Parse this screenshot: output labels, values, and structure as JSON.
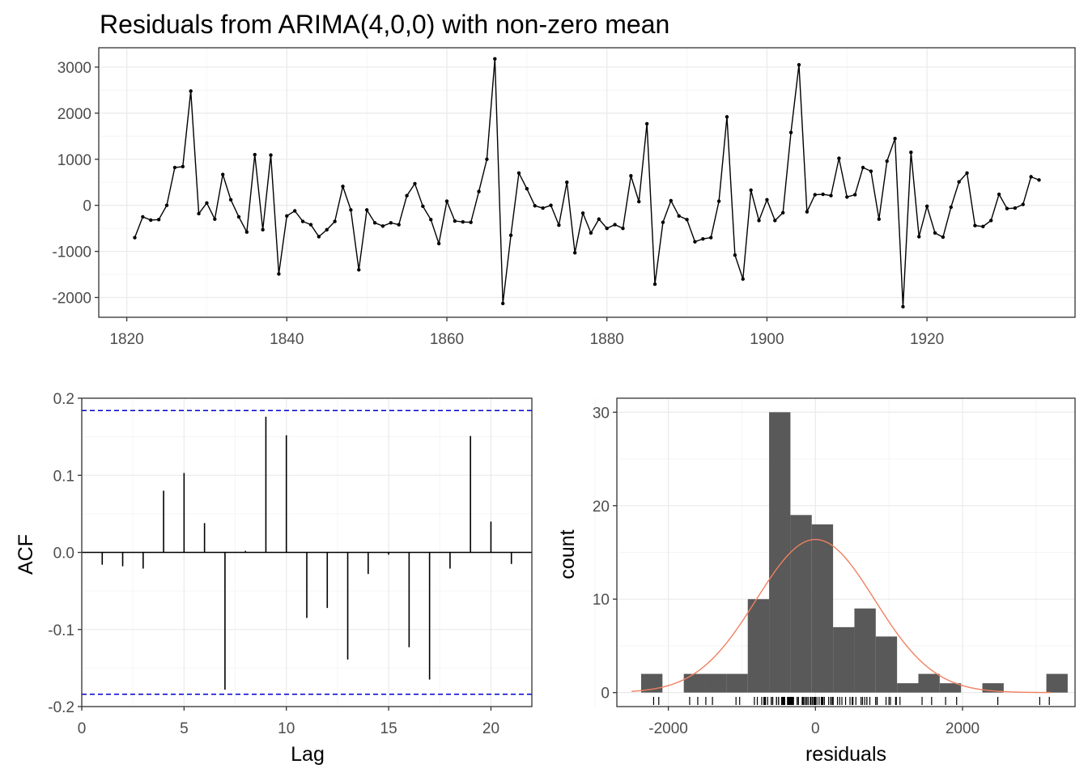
{
  "title": "Residuals from ARIMA(4,0,0) with non-zero mean",
  "colors": {
    "line": "#000000",
    "panel_border": "#333333",
    "grid_major": "#ebebeb",
    "grid_minor": "#f5f5f5",
    "ci_line": "#0000cc",
    "hist_fill": "#595959",
    "density": "#f08060"
  },
  "chart_data": [
    {
      "type": "line",
      "name": "residual-timeseries",
      "x_start": 1821,
      "x": [
        1821,
        1822,
        1823,
        1824,
        1825,
        1826,
        1827,
        1828,
        1829,
        1830,
        1831,
        1832,
        1833,
        1834,
        1835,
        1836,
        1837,
        1838,
        1839,
        1840,
        1841,
        1842,
        1843,
        1844,
        1845,
        1846,
        1847,
        1848,
        1849,
        1850,
        1851,
        1852,
        1853,
        1854,
        1855,
        1856,
        1857,
        1858,
        1859,
        1860,
        1861,
        1862,
        1863,
        1864,
        1865,
        1866,
        1867,
        1868,
        1869,
        1870,
        1871,
        1872,
        1873,
        1874,
        1875,
        1876,
        1877,
        1878,
        1879,
        1880,
        1881,
        1882,
        1883,
        1884,
        1885,
        1886,
        1887,
        1888,
        1889,
        1890,
        1891,
        1892,
        1893,
        1894,
        1895,
        1896,
        1897,
        1898,
        1899,
        1900,
        1901,
        1902,
        1903,
        1904,
        1905,
        1906,
        1907,
        1908,
        1909,
        1910,
        1911,
        1912,
        1913,
        1914,
        1915,
        1916,
        1917,
        1918,
        1919,
        1920,
        1921,
        1922,
        1923,
        1924,
        1925,
        1926,
        1927,
        1928,
        1929,
        1930,
        1931,
        1932,
        1933,
        1934
      ],
      "values": [
        -700,
        -250,
        -320,
        -310,
        0,
        820,
        840,
        2480,
        -180,
        50,
        -300,
        670,
        120,
        -250,
        -580,
        1100,
        -530,
        1090,
        -1490,
        -230,
        -120,
        -350,
        -420,
        -680,
        -530,
        -350,
        410,
        -100,
        -1400,
        -100,
        -380,
        -450,
        -380,
        -420,
        210,
        470,
        -20,
        -310,
        -830,
        90,
        -340,
        -360,
        -370,
        300,
        1000,
        3180,
        -2130,
        -650,
        700,
        360,
        -10,
        -60,
        0,
        -430,
        500,
        -1030,
        -170,
        -600,
        -300,
        -500,
        -420,
        -500,
        640,
        80,
        1770,
        -1710,
        -370,
        100,
        -230,
        -310,
        -790,
        -730,
        -700,
        90,
        1920,
        -1080,
        -1600,
        330,
        -330,
        120,
        -330,
        -160,
        1580,
        3050,
        -140,
        230,
        240,
        210,
        1020,
        180,
        230,
        820,
        740,
        -300,
        960,
        1450,
        -2200,
        1150,
        -680,
        -20,
        -600,
        -690,
        -40,
        510,
        700,
        -440,
        -460,
        -330,
        240,
        -70,
        -60,
        20,
        620,
        550
      ],
      "xlim": [
        1816.5,
        1938.5
      ],
      "ylim": [
        -2430,
        3420
      ],
      "x_ticks": [
        1820,
        1840,
        1860,
        1880,
        1900,
        1920
      ],
      "y_ticks": [
        -2000,
        -1000,
        0,
        1000,
        2000,
        3000
      ],
      "y_tick_labels": [
        "-2000",
        "-1000",
        "0",
        "1000",
        "2000",
        "3000"
      ],
      "grid": true
    },
    {
      "type": "bar",
      "name": "acf",
      "xlabel": "Lag",
      "ylabel": "ACF",
      "categories": [
        1,
        2,
        3,
        4,
        5,
        6,
        7,
        8,
        9,
        10,
        11,
        12,
        13,
        14,
        15,
        16,
        17,
        18,
        19,
        20,
        21
      ],
      "values": [
        -0.016,
        -0.018,
        -0.021,
        0.08,
        0.103,
        0.038,
        -0.178,
        0.002,
        0.176,
        0.152,
        -0.085,
        -0.072,
        -0.139,
        -0.028,
        -0.003,
        -0.123,
        -0.165,
        -0.021,
        0.151,
        0.04,
        -0.015
      ],
      "ci": 0.184,
      "xlim": [
        0,
        22
      ],
      "ylim": [
        -0.2,
        0.2
      ],
      "x_ticks": [
        0,
        5,
        10,
        15,
        20
      ],
      "x_tick_labels": [
        "0",
        "5",
        "10",
        "15",
        "20"
      ],
      "y_ticks": [
        -0.2,
        -0.1,
        0.0,
        0.1,
        0.2
      ],
      "y_tick_labels": [
        "-0.2",
        "-0.1",
        "0.0",
        "0.1",
        "0.2"
      ],
      "grid": true
    },
    {
      "type": "bar",
      "name": "residual-histogram",
      "xlabel": "residuals",
      "ylabel": "count",
      "bin_width": 290,
      "bin_starts": [
        -2370,
        -2080,
        -1790,
        -1500,
        -1210,
        -920,
        -630,
        -340,
        -50,
        240,
        530,
        820,
        1110,
        1400,
        1690,
        1980,
        2270,
        2560,
        2850,
        3140
      ],
      "values": [
        2,
        0,
        2,
        2,
        2,
        10,
        30,
        19,
        18,
        7,
        9,
        6,
        1,
        2,
        1,
        0,
        1,
        0,
        0,
        2
      ],
      "density": {
        "mean": 0,
        "sd": 805,
        "n": 114
      },
      "rug": [
        -2200,
        -2130,
        -1710,
        -1600,
        -1490,
        -1400,
        -1080,
        -1030,
        -830,
        -790,
        -730,
        -700,
        -700,
        -690,
        -680,
        -680,
        -650,
        -600,
        -600,
        -580,
        -530,
        -530,
        -500,
        -500,
        -460,
        -450,
        -440,
        -430,
        -420,
        -420,
        -420,
        -380,
        -370,
        -370,
        -360,
        -350,
        -350,
        -340,
        -330,
        -330,
        -330,
        -320,
        -310,
        -310,
        -310,
        -300,
        -300,
        -300,
        -250,
        -250,
        -230,
        -230,
        -180,
        -170,
        -160,
        -140,
        -120,
        -100,
        -100,
        -70,
        -60,
        -60,
        -40,
        -20,
        -20,
        -10,
        0,
        0,
        20,
        50,
        80,
        90,
        90,
        100,
        120,
        120,
        180,
        210,
        210,
        230,
        230,
        240,
        240,
        300,
        330,
        360,
        410,
        470,
        500,
        510,
        550,
        620,
        640,
        670,
        700,
        700,
        740,
        820,
        820,
        840,
        960,
        1000,
        1020,
        1090,
        1100,
        1150,
        1450,
        1580,
        1770,
        1920,
        2480,
        3050,
        3180
      ],
      "xlim": [
        -2700,
        3530
      ],
      "ylim": [
        -1.5,
        31.5
      ],
      "x_ticks": [
        -2000,
        0,
        2000
      ],
      "x_tick_labels": [
        "-2000",
        "0",
        "2000"
      ],
      "y_ticks": [
        0,
        10,
        20,
        30
      ],
      "y_tick_labels": [
        "0",
        "10",
        "20",
        "30"
      ],
      "grid": true
    }
  ]
}
